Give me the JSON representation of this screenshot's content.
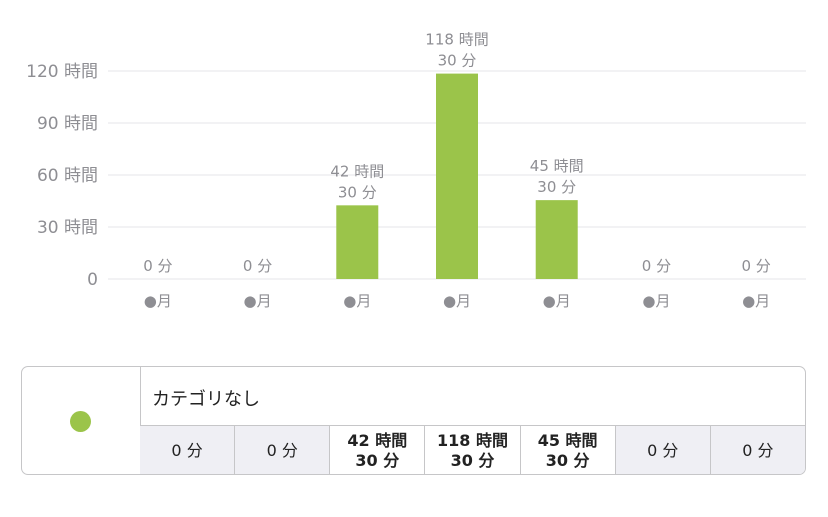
{
  "chart_data": {
    "type": "bar",
    "categories": [
      "●月",
      "●月",
      "●月",
      "●月",
      "●月",
      "●月",
      "●月"
    ],
    "values_minutes": [
      0,
      0,
      2550,
      7110,
      2730,
      0,
      0
    ],
    "value_labels": [
      "0 分",
      "0 分",
      "42 時間\n30 分",
      "118 時間\n30 分",
      "45 時間\n30 分",
      "0 分",
      "0 分"
    ],
    "y_ticks": [
      "0",
      "30 時間",
      "60 時間",
      "90 時間",
      "120 時間"
    ],
    "y_tick_values_hours": [
      0,
      30,
      60,
      90,
      120
    ],
    "ylim_hours": [
      0,
      120
    ],
    "bar_color": "#9bc44a",
    "grid": true
  },
  "legend": {
    "swatch_color": "#9bc44a",
    "category_name": "カテゴリなし",
    "values": [
      "0 分",
      "0 分",
      "42 時間\n30 分",
      "118 時間\n30 分",
      "45 時間\n30 分",
      "0 分",
      "0 分"
    ]
  }
}
